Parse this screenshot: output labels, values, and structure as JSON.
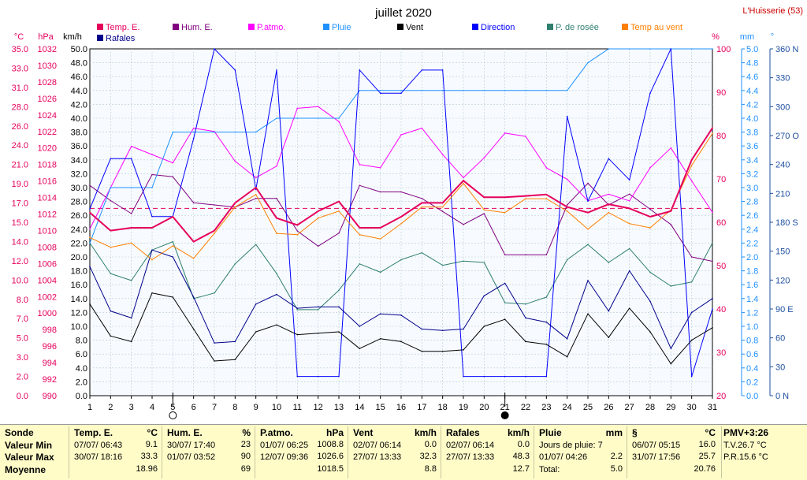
{
  "title": "juillet 2020",
  "station": "L'Huisserie (53)",
  "colors": {
    "temp": "#e6005c",
    "hum": "#800080",
    "patm": "#ff00ff",
    "pluie": "#1e90ff",
    "vent": "#000000",
    "direction": "#0000ff",
    "rosee": "#2f7f6f",
    "tvent": "#ff7f00",
    "rafales": "#00008b",
    "rule": "#e6005c"
  },
  "legend": [
    {
      "key": "temp",
      "label": "Temp. E."
    },
    {
      "key": "hum",
      "label": "Hum. E."
    },
    {
      "key": "patm",
      "label": "P.atmo."
    },
    {
      "key": "pluie",
      "label": "Pluie"
    },
    {
      "key": "vent",
      "label": "Vent"
    },
    {
      "key": "direction",
      "label": "Direction"
    },
    {
      "key": "rosee",
      "label": "P. de rosée"
    },
    {
      "key": "tvent",
      "label": "Temp au vent"
    },
    {
      "key": "rafales",
      "label": "Rafales"
    }
  ],
  "chart_data": {
    "type": "line",
    "x": [
      1,
      2,
      3,
      4,
      5,
      6,
      7,
      8,
      9,
      10,
      11,
      12,
      13,
      14,
      15,
      16,
      17,
      18,
      19,
      20,
      21,
      22,
      23,
      24,
      25,
      26,
      27,
      28,
      29,
      30,
      31
    ],
    "moon_markers": [
      {
        "day": 5,
        "phase": "new"
      },
      {
        "day": 21,
        "phase": "full"
      }
    ],
    "axis_units": {
      "temp": "°C",
      "patm": "hPa",
      "vent": "km/h",
      "hum": "%",
      "pluie": "mm",
      "direction": "°"
    },
    "axes": {
      "temp": {
        "ticks": [
          "35.0",
          "33.0",
          "31.0",
          "28.0",
          "26.0",
          "24.0",
          "21.0",
          "19.0",
          "17.0",
          "15.0",
          "14.0",
          "12.0",
          "10.0",
          "8.0",
          "7.0",
          "5.0",
          "3.0",
          "2.0",
          "0.0"
        ]
      },
      "patm": {
        "min": 990,
        "max": 1032,
        "step": 2
      },
      "vent": {
        "min": 0,
        "max": 50,
        "step": 2
      },
      "hum": {
        "min": 20,
        "max": 100,
        "step": 10
      },
      "pluie": {
        "min": 0,
        "max": 5,
        "step": 0.2
      },
      "direction": {
        "ticks": [
          "360 N",
          "330",
          "300",
          "270 O",
          "240",
          "210",
          "180 S",
          "150",
          "120",
          "90 E",
          "60",
          "30",
          "0 N"
        ]
      }
    },
    "reference_line": {
      "axis": "vent",
      "value": 27.0
    },
    "series": [
      {
        "key": "rosee",
        "axis": "vent",
        "values": [
          22.0,
          17.6,
          16.6,
          21.0,
          22.2,
          14.0,
          14.8,
          19.0,
          21.8,
          17.6,
          12.4,
          12.4,
          15.2,
          19.0,
          17.8,
          19.6,
          20.6,
          18.8,
          19.4,
          19.2,
          13.4,
          13.2,
          14.2,
          19.6,
          21.8,
          19.2,
          21.2,
          17.8,
          15.8,
          16.4,
          22.0
        ]
      },
      {
        "key": "hum",
        "axis": "hum",
        "values": [
          68.5,
          65.0,
          62.0,
          71.0,
          70.5,
          64.5,
          64.0,
          63.5,
          65.5,
          65.5,
          58.0,
          54.5,
          57.5,
          68.5,
          67.0,
          67.0,
          65.5,
          62.5,
          59.5,
          62.0,
          52.5,
          52.5,
          52.5,
          64.0,
          69.0,
          64.0,
          66.5,
          63.0,
          59.5,
          52.0,
          51.0
        ]
      },
      {
        "key": "patm",
        "axis": "patm",
        "values": [
          1010.2,
          1015.2,
          1020.2,
          1019.2,
          1018.2,
          1022.4,
          1022.0,
          1018.4,
          1016.4,
          1017.8,
          1024.8,
          1025.0,
          1023.2,
          1018.0,
          1017.6,
          1021.6,
          1022.4,
          1019.2,
          1016.4,
          1018.8,
          1021.8,
          1021.4,
          1017.6,
          1016.2,
          1013.6,
          1014.4,
          1013.6,
          1017.6,
          1020.0,
          1016.0,
          1012.2
        ]
      },
      {
        "key": "pluie",
        "axis": "pluie",
        "values": [
          2.2,
          3.0,
          3.0,
          3.0,
          3.8,
          3.8,
          3.8,
          3.8,
          3.8,
          4.0,
          4.0,
          4.0,
          4.0,
          4.4,
          4.4,
          4.4,
          4.4,
          4.4,
          4.4,
          4.4,
          4.4,
          4.4,
          4.4,
          4.4,
          4.8,
          5.0,
          5.0,
          5.0,
          5.0,
          5.0,
          5.0
        ]
      },
      {
        "key": "direction",
        "axis": "direction",
        "values": [
          194,
          246,
          246,
          186,
          186,
          267,
          360,
          338,
          214,
          338,
          20,
          20,
          20,
          338,
          314,
          314,
          338,
          338,
          20,
          20,
          20,
          20,
          20,
          290,
          202,
          246,
          224,
          314,
          360,
          20,
          90
        ]
      },
      {
        "key": "rafales",
        "axis": "vent",
        "values": [
          18.6,
          12.2,
          11.2,
          21.0,
          20.0,
          14.2,
          7.6,
          7.8,
          13.2,
          14.6,
          12.6,
          12.8,
          12.8,
          10.0,
          11.8,
          11.6,
          9.6,
          9.4,
          9.6,
          14.4,
          16.2,
          11.2,
          10.6,
          8.2,
          16.6,
          12.2,
          18.0,
          13.6,
          6.8,
          12.0,
          14.0
        ]
      },
      {
        "key": "vent",
        "axis": "vent",
        "values": [
          13.2,
          8.6,
          7.8,
          14.8,
          14.2,
          9.6,
          5.0,
          5.2,
          9.2,
          10.2,
          8.8,
          9.0,
          9.2,
          6.8,
          8.2,
          7.8,
          6.4,
          6.4,
          6.6,
          10.0,
          11.0,
          7.8,
          7.4,
          5.6,
          11.8,
          8.4,
          12.6,
          9.2,
          4.6,
          8.0,
          9.8
        ]
      },
      {
        "key": "tvent",
        "axis": "vent",
        "values": [
          22.8,
          21.4,
          22.0,
          19.6,
          21.6,
          19.8,
          23.4,
          27.2,
          29.0,
          23.4,
          23.2,
          25.6,
          26.6,
          23.2,
          22.6,
          24.8,
          27.2,
          27.2,
          30.6,
          26.8,
          26.4,
          28.4,
          28.4,
          26.6,
          24.0,
          26.4,
          24.8,
          24.2,
          26.8,
          33.2,
          37.8
        ]
      },
      {
        "key": "temp",
        "axis": "vent",
        "values": [
          26.4,
          23.8,
          24.2,
          24.2,
          25.8,
          22.2,
          23.8,
          27.8,
          30.0,
          25.6,
          24.6,
          26.6,
          28.0,
          24.2,
          24.2,
          25.8,
          27.8,
          27.8,
          31.0,
          28.6,
          28.6,
          28.8,
          29.0,
          27.2,
          26.4,
          27.6,
          27.0,
          25.8,
          26.6,
          34.0,
          38.6
        ]
      }
    ]
  },
  "stats": {
    "rows": [
      "Sonde",
      "Valeur Min",
      "Valeur Max",
      "Moyenne"
    ],
    "blocks": [
      {
        "name": "temp",
        "title": "Temp. E.",
        "unit": "°C",
        "l1": [
          "07/07/  06:43",
          "9.1"
        ],
        "l2": [
          "30/07/  18:16",
          "33.3"
        ],
        "l3": [
          "",
          "18.96"
        ]
      },
      {
        "name": "hum",
        "title": "Hum. E.",
        "unit": "%",
        "l1": [
          "30/07/  17:40",
          "23"
        ],
        "l2": [
          "01/07/  03:52",
          "90"
        ],
        "l3": [
          "",
          "69"
        ]
      },
      {
        "name": "patm",
        "title": "P.atmo.",
        "unit": "hPa",
        "l1": [
          "01/07/  06:25",
          "1008.8"
        ],
        "l2": [
          "12/07/  09:36",
          "1026.6"
        ],
        "l3": [
          "",
          "1018.5"
        ]
      },
      {
        "name": "vent",
        "title": "Vent",
        "unit": "km/h",
        "l1": [
          "02/07/  06:14",
          "0.0"
        ],
        "l2": [
          "27/07/  13:33",
          "32.3"
        ],
        "l3": [
          "",
          "8.8"
        ]
      },
      {
        "name": "rafales",
        "title": "Rafales",
        "unit": "km/h",
        "l1": [
          "02/07/  06:14",
          "0.0"
        ],
        "l2": [
          "27/07/  13:33",
          "48.3"
        ],
        "l3": [
          "",
          "12.7"
        ]
      },
      {
        "name": "pluie",
        "title": "Pluie",
        "unit": "mm",
        "l1": [
          "Jours de pluie: 7",
          ""
        ],
        "l2": [
          "01/07/  04:26",
          "2.2"
        ],
        "l3": [
          "Total:",
          "5.0"
        ]
      },
      {
        "name": "rosee",
        "title": "§",
        "unit": "°C",
        "l1": [
          "06/07/  05:15",
          "16.0"
        ],
        "l2": [
          "31/07/  17:56",
          "25.7"
        ],
        "l3": [
          "",
          "20.76"
        ]
      }
    ],
    "pmv": {
      "title": "PMV+3:26",
      "l1": "T.V.26.7 °C",
      "l2": "P.R.15.6 °C"
    }
  }
}
